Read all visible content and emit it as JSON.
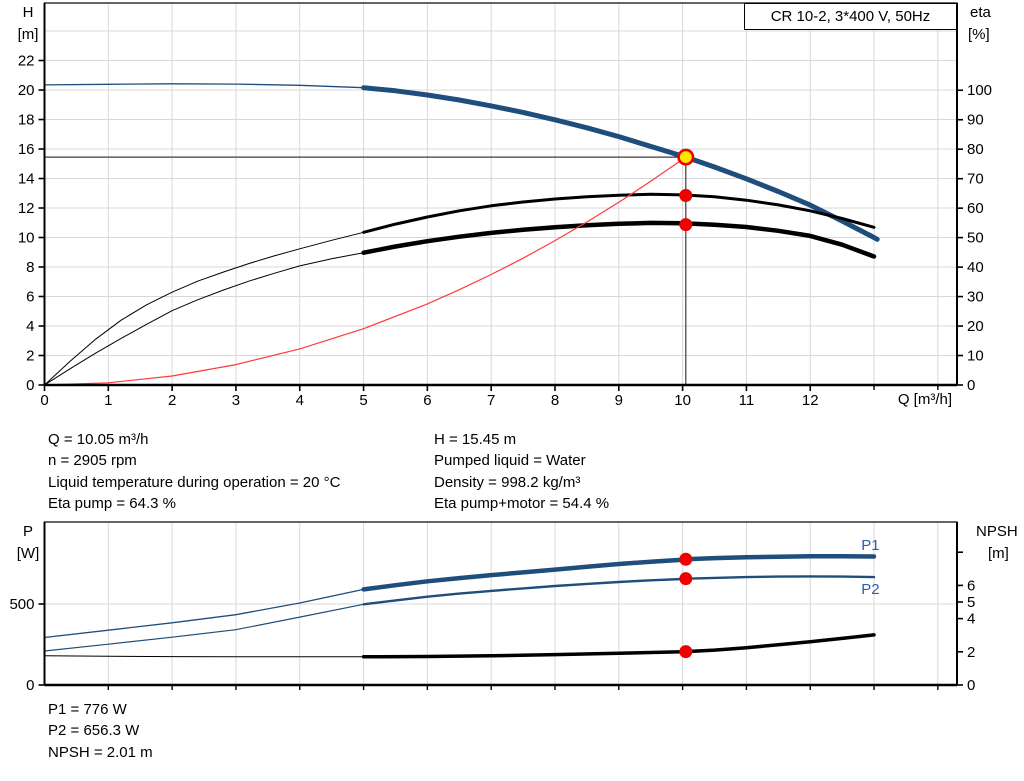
{
  "model_title": "CR 10-2, 3*400 V, 50Hz",
  "axis_titles": {
    "h_top": "H",
    "h_unit": "[m]",
    "eta_top": "eta",
    "eta_unit": "[%]",
    "q_label": "Q [m³/h]",
    "p_top": "P",
    "p_unit": "[W]",
    "npsh_top": "NPSH",
    "npsh_unit": "[m]"
  },
  "info": {
    "top_left": [
      "Q = 10.05 m³/h",
      "n = 2905 rpm",
      "Liquid temperature during operation = 20 °C",
      "Eta pump = 64.3 %"
    ],
    "top_right": [
      "H = 15.45 m",
      "Pumped liquid = Water",
      "Density = 998.2 kg/m³",
      "Eta pump+motor = 54.4 %"
    ],
    "bottom": [
      "P1 = 776 W",
      "P2 = 656.3 W",
      "NPSH = 2.01 m"
    ]
  },
  "colors": {
    "curve_blue": "#1f4e7c",
    "label_blue": "#2a5fac",
    "red": "#f20000",
    "system_red": "#fe3b3b",
    "yellow": "#ffe600",
    "grid": "#d8d8d8",
    "crosshair": "#3c3c3c",
    "axis": "#000000"
  },
  "chart_data": [
    {
      "type": "line",
      "title": "CR 10-2, 3*400 V, 50Hz",
      "x_axis": {
        "label": "Q [m³/h]",
        "min": 0,
        "max": 14.3,
        "labeled_ticks": [
          0,
          1,
          2,
          3,
          4,
          5,
          6,
          7,
          8,
          9,
          10,
          11,
          12
        ],
        "unlabeled_ticks": [
          13,
          14
        ]
      },
      "y_left": {
        "label": "H [m]",
        "min": 0,
        "max": 25.9,
        "ticks": [
          0,
          2,
          4,
          6,
          8,
          10,
          12,
          14,
          16,
          18,
          20,
          22
        ],
        "grid_values": [
          2,
          4,
          6,
          8,
          10,
          12,
          14,
          16,
          18,
          20,
          22,
          24
        ]
      },
      "y_right": {
        "label": "eta [%]",
        "min": 0,
        "max": 129.6,
        "ticks": [
          0,
          10,
          20,
          30,
          40,
          50,
          60,
          70,
          80,
          90,
          100
        ]
      },
      "crosshair": {
        "q": 10.05,
        "h": 15.45
      },
      "series": [
        {
          "name": "head-curve-preferred-range-thin",
          "axis": "left",
          "color": "#1f4e7c",
          "width": 1.3,
          "points": [
            [
              0,
              20.35
            ],
            [
              1,
              20.39
            ],
            [
              2,
              20.42
            ],
            [
              3,
              20.4
            ],
            [
              4,
              20.32
            ],
            [
              5,
              20.16
            ]
          ]
        },
        {
          "name": "head-curve",
          "axis": "left",
          "color": "#1f4e7c",
          "width": 5,
          "points": [
            [
              5,
              20.16
            ],
            [
              5.5,
              19.95
            ],
            [
              6,
              19.66
            ],
            [
              6.5,
              19.32
            ],
            [
              7,
              18.92
            ],
            [
              7.5,
              18.48
            ],
            [
              8,
              17.98
            ],
            [
              8.5,
              17.44
            ],
            [
              9,
              16.84
            ],
            [
              9.5,
              16.18
            ],
            [
              10,
              15.52
            ],
            [
              10.05,
              15.45
            ],
            [
              10.5,
              14.78
            ],
            [
              11,
              13.98
            ],
            [
              11.5,
              13.12
            ],
            [
              12,
              12.2
            ],
            [
              12.5,
              11.12
            ],
            [
              13,
              10.0
            ],
            [
              13.05,
              9.88
            ]
          ]
        },
        {
          "name": "eta-pump-thin",
          "axis": "right",
          "color": "#000000",
          "width": 1,
          "points": [
            [
              0,
              0
            ],
            [
              0.4,
              8
            ],
            [
              0.8,
              15.5
            ],
            [
              1.2,
              22
            ],
            [
              1.6,
              27.2
            ],
            [
              2,
              31.5
            ],
            [
              2.4,
              35.2
            ],
            [
              2.8,
              38.3
            ],
            [
              3.2,
              41.2
            ],
            [
              3.6,
              43.8
            ],
            [
              4,
              46.2
            ],
            [
              4.5,
              49.1
            ],
            [
              5,
              51.8
            ]
          ]
        },
        {
          "name": "eta-pump",
          "axis": "right",
          "color": "#000000",
          "width": 3,
          "points": [
            [
              5,
              51.8
            ],
            [
              5.5,
              54.6
            ],
            [
              6,
              57
            ],
            [
              6.5,
              59.1
            ],
            [
              7,
              60.8
            ],
            [
              7.5,
              62.1
            ],
            [
              8,
              63.1
            ],
            [
              8.5,
              63.9
            ],
            [
              9,
              64.4
            ],
            [
              9.5,
              64.7
            ],
            [
              10,
              64.5
            ],
            [
              10.5,
              63.9
            ],
            [
              11,
              62.7
            ],
            [
              11.5,
              61.1
            ],
            [
              12,
              59.1
            ],
            [
              12.5,
              56.5
            ],
            [
              13,
              53.5
            ]
          ]
        },
        {
          "name": "eta-pump-motor-thin",
          "axis": "right",
          "color": "#000000",
          "width": 1,
          "points": [
            [
              0,
              0
            ],
            [
              0.4,
              5.5
            ],
            [
              0.8,
              10.8
            ],
            [
              1.2,
              15.8
            ],
            [
              1.6,
              20.6
            ],
            [
              2,
              25.2
            ],
            [
              2.4,
              28.9
            ],
            [
              2.8,
              32.2
            ],
            [
              3.2,
              35.2
            ],
            [
              3.6,
              37.9
            ],
            [
              4,
              40.4
            ],
            [
              4.5,
              42.8
            ],
            [
              5,
              44.9
            ]
          ]
        },
        {
          "name": "eta-pump-motor",
          "axis": "right",
          "color": "#000000",
          "width": 4.5,
          "points": [
            [
              5,
              44.9
            ],
            [
              5.5,
              47
            ],
            [
              6,
              48.8
            ],
            [
              6.5,
              50.3
            ],
            [
              7,
              51.6
            ],
            [
              7.5,
              52.7
            ],
            [
              8,
              53.5
            ],
            [
              8.5,
              54.2
            ],
            [
              9,
              54.7
            ],
            [
              9.5,
              55
            ],
            [
              10,
              54.9
            ],
            [
              10.5,
              54.4
            ],
            [
              11,
              53.6
            ],
            [
              11.5,
              52.3
            ],
            [
              12,
              50.6
            ],
            [
              12.5,
              47.6
            ],
            [
              13,
              43.6
            ]
          ]
        },
        {
          "name": "system-curve",
          "axis": "left",
          "color": "#fe3b3b",
          "width": 1.2,
          "points": [
            [
              0,
              0
            ],
            [
              1,
              0.15
            ],
            [
              2,
              0.61
            ],
            [
              3,
              1.38
            ],
            [
              4,
              2.45
            ],
            [
              5,
              3.82
            ],
            [
              6,
              5.5
            ],
            [
              6.5,
              6.46
            ],
            [
              7,
              7.49
            ],
            [
              7.5,
              8.6
            ],
            [
              8,
              9.79
            ],
            [
              8.5,
              11.05
            ],
            [
              9,
              12.39
            ],
            [
              9.5,
              13.81
            ],
            [
              10.05,
              15.45
            ]
          ]
        }
      ],
      "markers": [
        {
          "type": "duty",
          "axis": "left",
          "q": 10.05,
          "v": 15.45
        },
        {
          "type": "dot",
          "axis": "right",
          "q": 10.05,
          "v": 64.3
        },
        {
          "type": "dot",
          "axis": "right",
          "q": 10.05,
          "v": 54.4
        }
      ],
      "annotations": []
    },
    {
      "type": "line",
      "title": "",
      "x_axis": {
        "label": "",
        "min": 0,
        "max": 14.3,
        "labeled_ticks": [],
        "unlabeled_ticks": [
          1,
          2,
          3,
          4,
          5,
          6,
          7,
          8,
          9,
          10,
          11,
          12,
          13,
          14
        ]
      },
      "y_left": {
        "label": "P [W]",
        "min": 0,
        "max": 1006,
        "ticks": [
          0,
          500
        ],
        "grid_values": [
          500
        ]
      },
      "y_right": {
        "label": "NPSH [m]",
        "min": 0,
        "max": 9.82,
        "ticks": [
          0,
          2,
          4,
          5,
          6
        ],
        "unlabeled_ticks": [
          8
        ]
      },
      "series": [
        {
          "name": "p1-curve-thin",
          "axis": "left",
          "color": "#1f4e7c",
          "width": 1.3,
          "points": [
            [
              0,
              293
            ],
            [
              1,
              338
            ],
            [
              2,
              384
            ],
            [
              3,
              434
            ],
            [
              4,
              506
            ],
            [
              5,
              590
            ]
          ]
        },
        {
          "name": "p1-curve",
          "axis": "left",
          "color": "#1f4e7c",
          "width": 4.5,
          "points": [
            [
              5,
              590
            ],
            [
              5.5,
              616
            ],
            [
              6,
              640
            ],
            [
              6.5,
              660
            ],
            [
              7,
              678
            ],
            [
              7.5,
              695
            ],
            [
              8,
              712
            ],
            [
              8.5,
              730
            ],
            [
              9,
              747
            ],
            [
              9.5,
              761
            ],
            [
              10,
              773
            ],
            [
              10.05,
              776
            ],
            [
              10.5,
              783
            ],
            [
              11,
              789
            ],
            [
              11.5,
              792
            ],
            [
              12,
              794
            ],
            [
              12.5,
              794
            ],
            [
              13,
              793
            ]
          ]
        },
        {
          "name": "p2-curve-thin",
          "axis": "left",
          "color": "#1f4e7c",
          "width": 1.2,
          "points": [
            [
              0,
              210
            ],
            [
              1,
              252
            ],
            [
              2,
              295
            ],
            [
              3,
              341
            ],
            [
              4,
              419
            ],
            [
              5,
              498
            ]
          ]
        },
        {
          "name": "p2-curve",
          "axis": "left",
          "color": "#1f4e7c",
          "width": 2.4,
          "points": [
            [
              5,
              498
            ],
            [
              5.5,
              522
            ],
            [
              6,
              545
            ],
            [
              6.5,
              564
            ],
            [
              7,
              581
            ],
            [
              7.5,
              596
            ],
            [
              8,
              611
            ],
            [
              8.5,
              624
            ],
            [
              9,
              636
            ],
            [
              9.5,
              646
            ],
            [
              10,
              654
            ],
            [
              10.05,
              656.3
            ],
            [
              10.5,
              661
            ],
            [
              11,
              666
            ],
            [
              11.5,
              669
            ],
            [
              12,
              670
            ],
            [
              12.5,
              669
            ],
            [
              13,
              666
            ]
          ]
        },
        {
          "name": "npsh-curve-thin",
          "axis": "right",
          "color": "#000000",
          "width": 1,
          "points": [
            [
              0,
              1.76
            ],
            [
              1,
              1.73
            ],
            [
              2,
              1.71
            ],
            [
              3,
              1.7
            ],
            [
              4,
              1.7
            ],
            [
              5,
              1.7
            ]
          ]
        },
        {
          "name": "npsh-curve",
          "axis": "right",
          "color": "#000000",
          "width": 3.5,
          "points": [
            [
              5,
              1.7
            ],
            [
              6,
              1.72
            ],
            [
              7,
              1.76
            ],
            [
              8,
              1.83
            ],
            [
              9,
              1.91
            ],
            [
              10,
              2.0
            ],
            [
              10.05,
              2.01
            ],
            [
              10.5,
              2.1
            ],
            [
              11,
              2.25
            ],
            [
              11.5,
              2.42
            ],
            [
              12,
              2.6
            ],
            [
              12.5,
              2.81
            ],
            [
              13,
              3.02
            ]
          ]
        }
      ],
      "markers": [
        {
          "type": "dot",
          "axis": "left",
          "q": 10.05,
          "v": 776
        },
        {
          "type": "dot",
          "axis": "left",
          "q": 10.05,
          "v": 656.3
        },
        {
          "type": "dot",
          "axis": "right",
          "q": 10.05,
          "v": 2.01
        }
      ],
      "annotations": [
        {
          "text": "P1",
          "q": 12.8,
          "v": 833,
          "axis": "left",
          "color": "#2a5fac"
        },
        {
          "text": "P2",
          "q": 12.8,
          "v": 561,
          "axis": "left",
          "color": "#2a5fac"
        }
      ]
    }
  ]
}
